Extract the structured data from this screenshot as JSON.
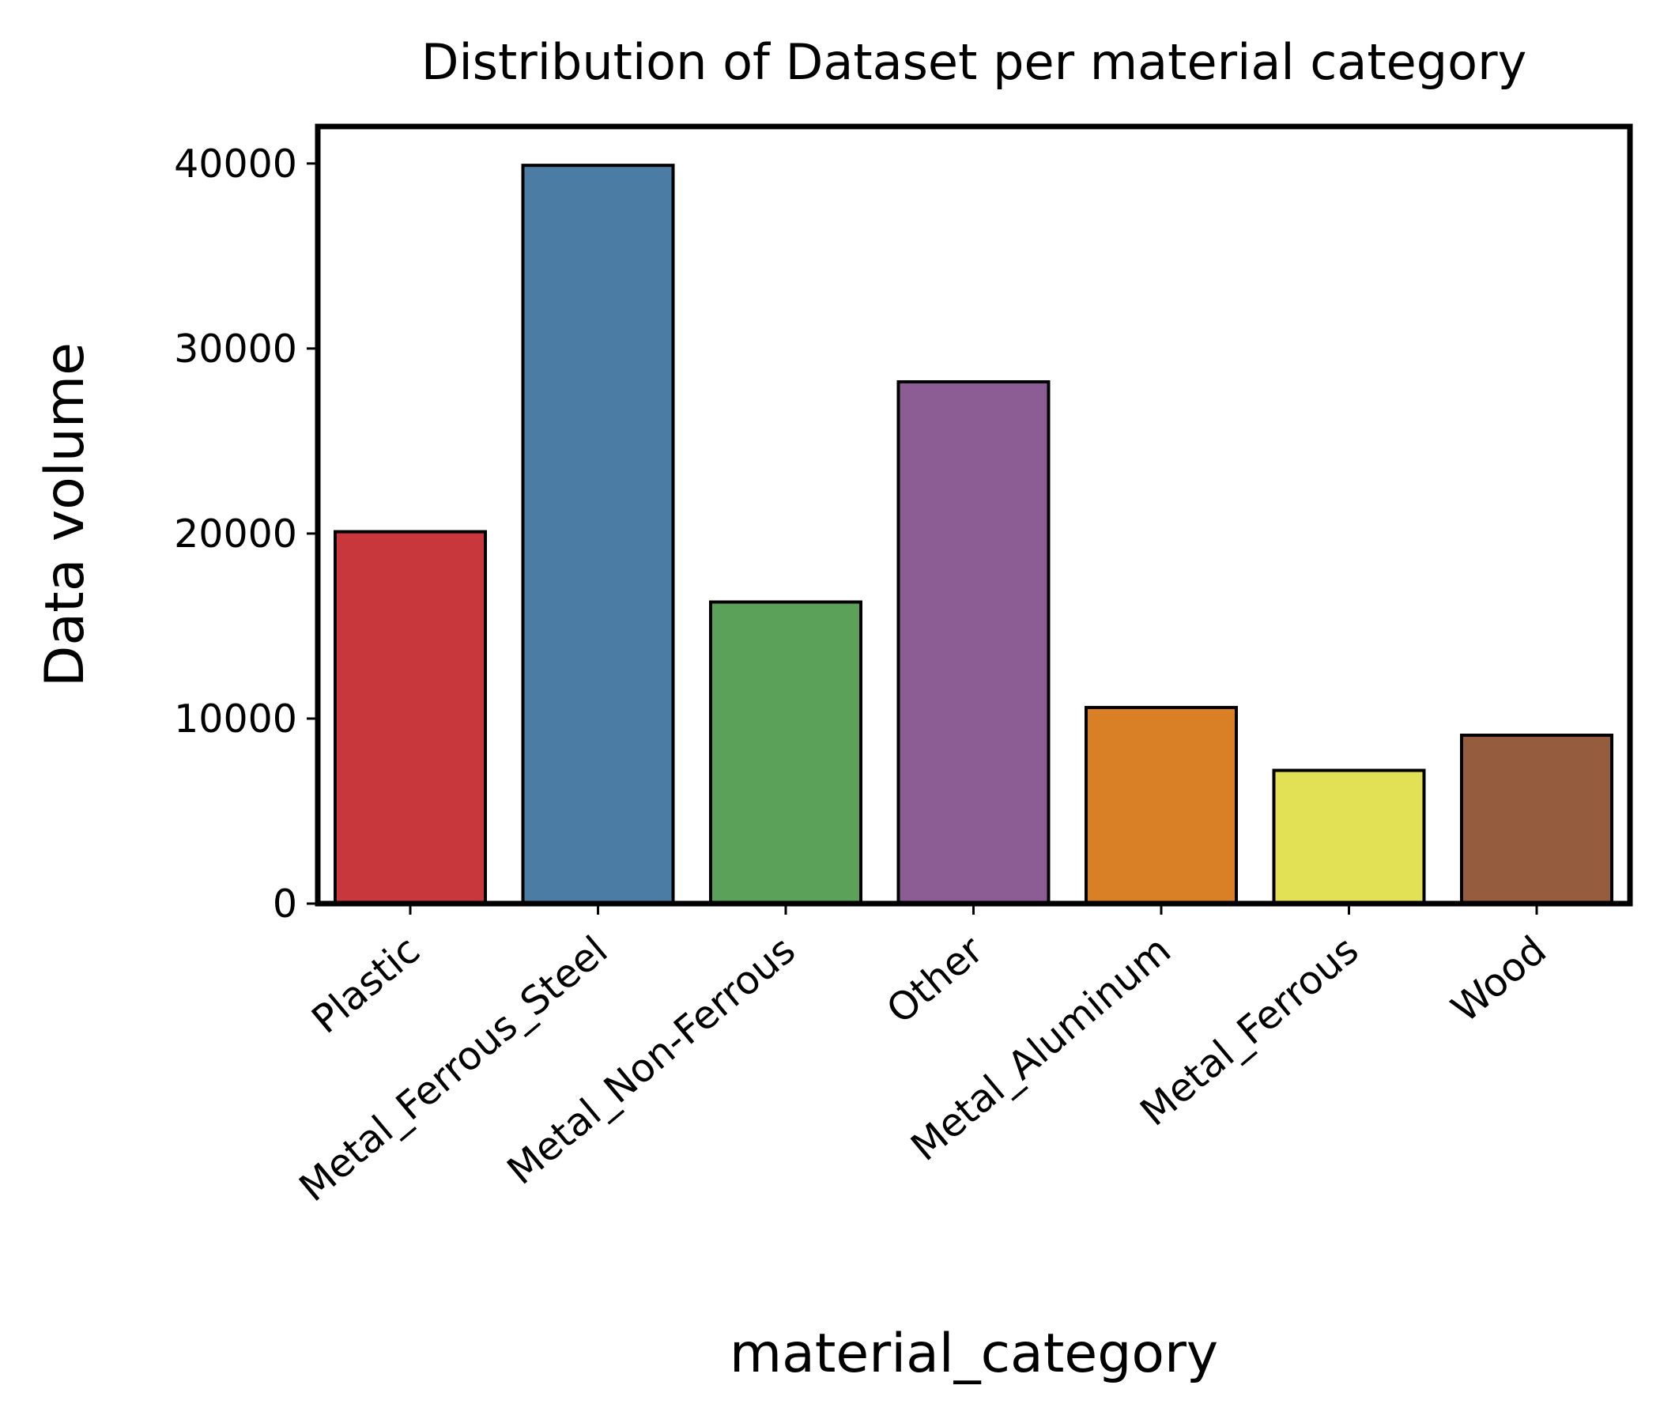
{
  "chart_data": {
    "type": "bar",
    "title": "Distribution of Dataset per material category",
    "xlabel": "material_category",
    "ylabel": "Data volume",
    "categories": [
      "Plastic",
      "Metal_Ferrous_Steel",
      "Metal_Non-Ferrous",
      "Other",
      "Metal_Aluminum",
      "Metal_Ferrous",
      "Wood"
    ],
    "values": [
      20100,
      39900,
      16300,
      28200,
      10600,
      7200,
      9100
    ],
    "colors": [
      "#c8373b",
      "#4a7ca4",
      "#5ba159",
      "#8c5c95",
      "#d98027",
      "#e2e054",
      "#955c3d"
    ],
    "ylim": [
      0,
      42000
    ],
    "yticks": [
      0,
      10000,
      20000,
      30000,
      40000
    ],
    "ytick_labels": [
      "0",
      "10000",
      "20000",
      "30000",
      "40000"
    ],
    "grid": false,
    "legend": "none"
  }
}
